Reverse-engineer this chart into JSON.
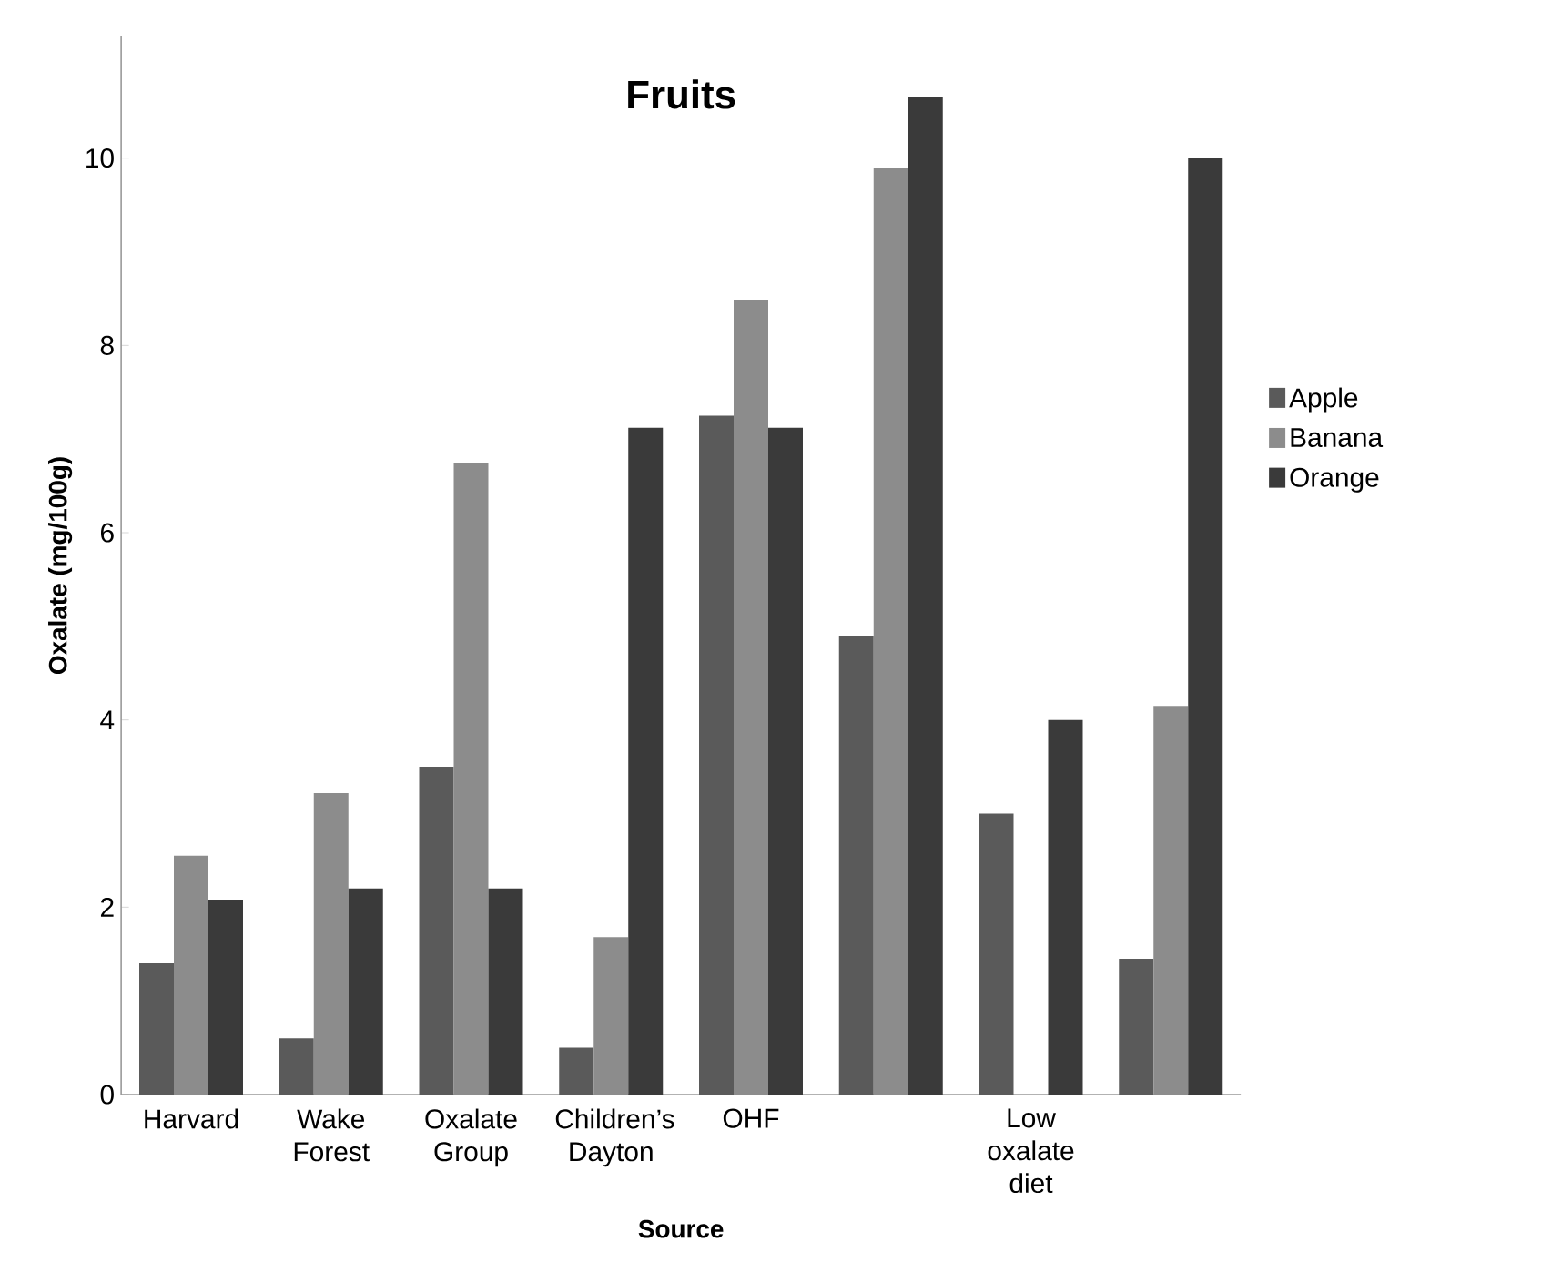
{
  "chart_data": {
    "type": "bar",
    "title": "Fruits",
    "xlabel": "Source",
    "ylabel": "Oxalate (mg/100g)",
    "categories": [
      "Harvard",
      "Wake Forest",
      "Oxalate Group",
      "Children’s Dayton",
      "OHF",
      null,
      "Low oxalate diet",
      null
    ],
    "series": [
      {
        "name": "Apple",
        "color": "#5a5a5a",
        "values": [
          1.4,
          0.6,
          3.5,
          0.5,
          7.25,
          4.9,
          3.0,
          1.45
        ]
      },
      {
        "name": "Banana",
        "color": "#8c8c8c",
        "values": [
          2.55,
          3.22,
          6.75,
          1.68,
          8.48,
          9.9,
          null,
          4.15
        ]
      },
      {
        "name": "Orange",
        "color": "#3a3a3a",
        "values": [
          2.08,
          2.2,
          2.2,
          7.12,
          7.12,
          10.65,
          4.0,
          10.0
        ]
      }
    ],
    "ylim": [
      0,
      11.3
    ],
    "yticks": [
      0,
      2,
      4,
      6,
      8,
      10
    ],
    "grid": false,
    "legend": "right"
  }
}
